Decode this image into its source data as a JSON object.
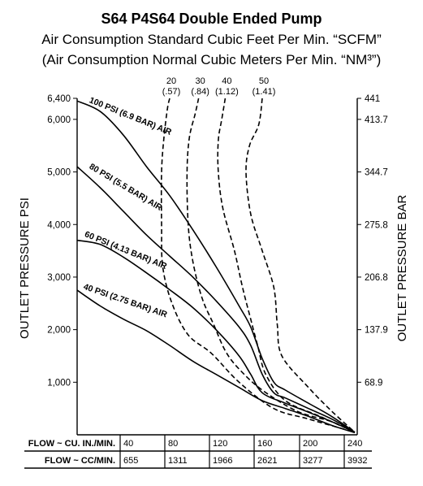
{
  "titles": {
    "line1": "S64 P4S64 Double Ended Pump",
    "line2": "Air Consumption Standard Cubic Feet Per Min. “SCFM”",
    "line3": "(Air Consumption Normal Cubic Meters Per Min. “NM³”)"
  },
  "chart_data": {
    "type": "line",
    "ylabel": "OUTLET PRESSURE PSI",
    "ylabel_right": "OUTLET PRESSURE BAR",
    "ylim": [
      0,
      6400
    ],
    "xlim": [
      0,
      240
    ],
    "y_ticks": [
      "6,400",
      "6,000",
      "5,000",
      "4,000",
      "3,000",
      "2,000",
      "1,000"
    ],
    "y_tick_values": [
      6400,
      6000,
      5000,
      4000,
      3000,
      2000,
      1000
    ],
    "y_right_ticks": [
      "441",
      "413.7",
      "344.7",
      "275.8",
      "206.8",
      "137.9",
      "68.9"
    ],
    "flow_table": {
      "row1_label": "FLOW ~ CU. IN./MIN.",
      "row1_values": [
        "40",
        "80",
        "120",
        "160",
        "200",
        "240"
      ],
      "row1_positions": [
        40,
        80,
        120,
        160,
        200,
        240
      ],
      "row2_label": "FLOW ~ CC/MIN.",
      "row2_values": [
        "655",
        "1311",
        "1966",
        "2621",
        "3277",
        "3932"
      ]
    },
    "series": [
      {
        "name": "100 PSI (6.9 BAR) AIR",
        "points": [
          [
            0,
            6350
          ],
          [
            20,
            6150
          ],
          [
            40,
            5700
          ],
          [
            60,
            5100
          ],
          [
            80,
            4550
          ],
          [
            100,
            3900
          ],
          [
            120,
            3200
          ],
          [
            140,
            2450
          ],
          [
            150,
            2050
          ],
          [
            160,
            1450
          ],
          [
            170,
            1000
          ],
          [
            180,
            850
          ],
          [
            200,
            600
          ],
          [
            220,
            350
          ],
          [
            240,
            50
          ]
        ]
      },
      {
        "name": "80 PSI (5.5 BAR) AIR",
        "points": [
          [
            0,
            5100
          ],
          [
            20,
            4700
          ],
          [
            40,
            4250
          ],
          [
            60,
            3800
          ],
          [
            80,
            3400
          ],
          [
            100,
            3000
          ],
          [
            120,
            2550
          ],
          [
            140,
            2050
          ],
          [
            150,
            1700
          ],
          [
            160,
            1150
          ],
          [
            170,
            800
          ],
          [
            180,
            700
          ],
          [
            200,
            500
          ],
          [
            220,
            300
          ],
          [
            240,
            50
          ]
        ]
      },
      {
        "name": "60 PSI (4.13 BAR) AIR",
        "points": [
          [
            0,
            3700
          ],
          [
            20,
            3620
          ],
          [
            40,
            3380
          ],
          [
            60,
            3080
          ],
          [
            80,
            2760
          ],
          [
            100,
            2420
          ],
          [
            120,
            2000
          ],
          [
            140,
            1500
          ],
          [
            150,
            1150
          ],
          [
            160,
            800
          ],
          [
            180,
            600
          ],
          [
            200,
            430
          ],
          [
            220,
            250
          ],
          [
            240,
            50
          ]
        ]
      },
      {
        "name": "40 PSI (2.75 BAR) AIR",
        "points": [
          [
            0,
            2750
          ],
          [
            20,
            2450
          ],
          [
            40,
            2200
          ],
          [
            60,
            1980
          ],
          [
            80,
            1700
          ],
          [
            100,
            1400
          ],
          [
            120,
            1150
          ],
          [
            140,
            900
          ],
          [
            160,
            650
          ],
          [
            180,
            500
          ],
          [
            200,
            350
          ],
          [
            220,
            180
          ],
          [
            240,
            40
          ]
        ]
      }
    ],
    "consumption_curves": [
      {
        "scfm": "20",
        "nm3": "(.57)",
        "points": [
          [
            80,
            6400
          ],
          [
            78,
            6200
          ],
          [
            75,
            5650
          ],
          [
            73,
            5000
          ],
          [
            73,
            4000
          ],
          [
            74,
            3200
          ],
          [
            82,
            2500
          ],
          [
            96,
            1900
          ],
          [
            116,
            1550
          ],
          [
            140,
            1000
          ],
          [
            170,
            500
          ],
          [
            200,
            300
          ],
          [
            240,
            50
          ]
        ]
      },
      {
        "scfm": "30",
        "nm3": "(.84)",
        "points": [
          [
            105,
            6400
          ],
          [
            102,
            6100
          ],
          [
            97,
            5650
          ],
          [
            95,
            5000
          ],
          [
            96,
            4000
          ],
          [
            100,
            3300
          ],
          [
            108,
            2600
          ],
          [
            118,
            2100
          ],
          [
            128,
            1600
          ],
          [
            140,
            1250
          ],
          [
            160,
            850
          ],
          [
            190,
            450
          ],
          [
            220,
            250
          ],
          [
            240,
            50
          ]
        ]
      },
      {
        "scfm": "40",
        "nm3": "(1.12)",
        "points": [
          [
            128,
            6400
          ],
          [
            125,
            6000
          ],
          [
            122,
            5600
          ],
          [
            122,
            5000
          ],
          [
            126,
            4300
          ],
          [
            136,
            3500
          ],
          [
            143,
            2800
          ],
          [
            150,
            2200
          ],
          [
            156,
            1700
          ],
          [
            163,
            1150
          ],
          [
            180,
            650
          ],
          [
            210,
            350
          ],
          [
            240,
            50
          ]
        ]
      },
      {
        "scfm": "50",
        "nm3": "(1.41)",
        "points": [
          [
            160,
            6400
          ],
          [
            157,
            5900
          ],
          [
            149,
            5500
          ],
          [
            146,
            5000
          ],
          [
            150,
            4200
          ],
          [
            160,
            3500
          ],
          [
            170,
            2800
          ],
          [
            173,
            2100
          ],
          [
            177,
            1500
          ],
          [
            200,
            900
          ],
          [
            220,
            450
          ],
          [
            240,
            50
          ]
        ]
      }
    ]
  }
}
